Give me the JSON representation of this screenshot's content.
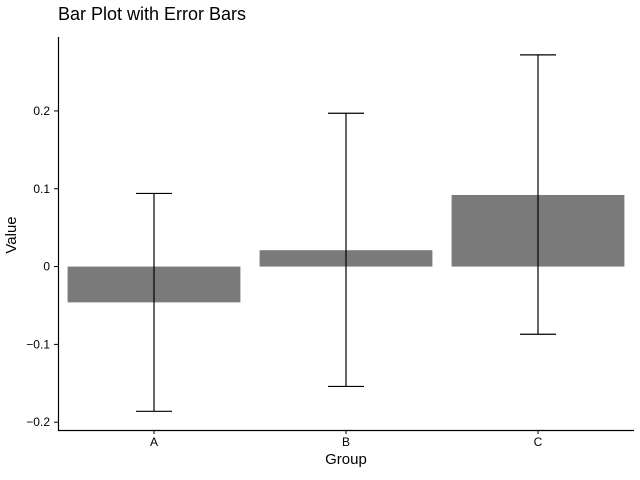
{
  "chart_data": {
    "type": "bar",
    "title": "Bar Plot with Error Bars",
    "xlabel": "Group",
    "ylabel": "Value",
    "categories": [
      "A",
      "B",
      "C"
    ],
    "values": [
      -0.046,
      0.021,
      0.092
    ],
    "error_low": [
      -0.186,
      -0.154,
      -0.087
    ],
    "error_high": [
      0.094,
      0.197,
      0.272
    ],
    "ylim": [
      -0.21,
      0.295
    ],
    "yticks": [
      -0.2,
      -0.1,
      0,
      0.1,
      0.2
    ],
    "ytick_labels": [
      "−0.2",
      "−0.1",
      "0",
      "0.1",
      "0.2"
    ],
    "bar_color": "#7a7a7a",
    "grid": false,
    "legend": "none"
  }
}
